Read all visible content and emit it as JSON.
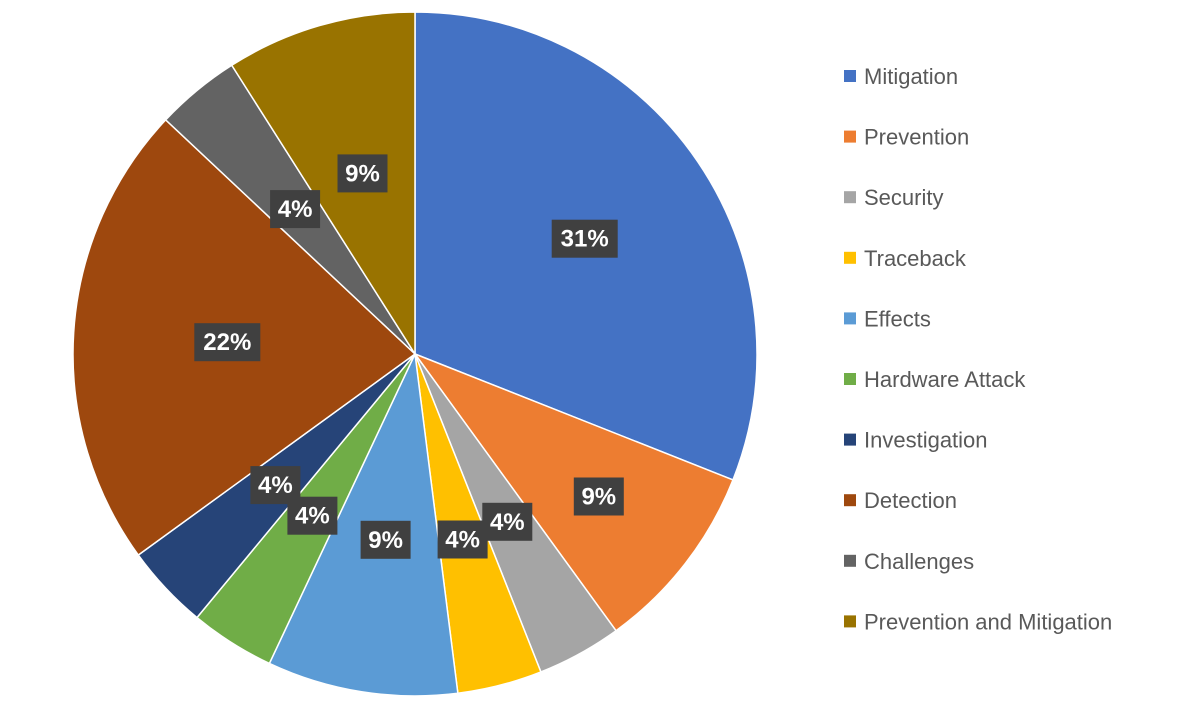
{
  "chart_data": {
    "type": "pie",
    "title": "",
    "legend_position": "right",
    "slices": [
      {
        "label": "Mitigation",
        "value": 31,
        "data_label": "31%",
        "color": "#4472C4"
      },
      {
        "label": "Prevention",
        "value": 9,
        "data_label": "9%",
        "color": "#ED7D31"
      },
      {
        "label": "Security",
        "value": 4,
        "data_label": "4%",
        "color": "#A5A5A5"
      },
      {
        "label": "Traceback",
        "value": 4,
        "data_label": "4%",
        "color": "#FFC000"
      },
      {
        "label": "Effects",
        "value": 9,
        "data_label": "9%",
        "color": "#5B9BD5"
      },
      {
        "label": "Hardware Attack",
        "value": 4,
        "data_label": "4%",
        "color": "#70AD47"
      },
      {
        "label": "Investigation",
        "value": 4,
        "data_label": "4%",
        "color": "#264478"
      },
      {
        "label": "Detection",
        "value": 22,
        "data_label": "22%",
        "color": "#9E480E"
      },
      {
        "label": "Challenges",
        "value": 4,
        "data_label": "4%",
        "color": "#636363"
      },
      {
        "label": "Prevention and Mitigation",
        "value": 9,
        "data_label": "9%",
        "color": "#997300"
      }
    ]
  }
}
